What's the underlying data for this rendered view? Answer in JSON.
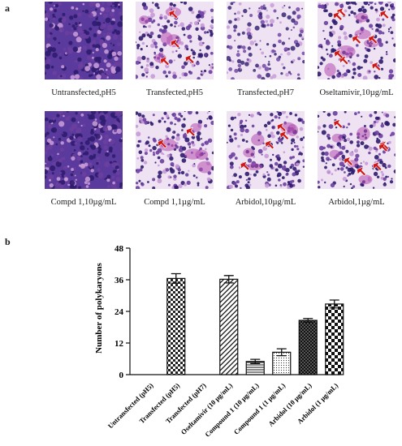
{
  "panel_a": {
    "label": "a",
    "images": [
      {
        "caption": "Untransfected,pH5",
        "style": "dense",
        "arrows": 0
      },
      {
        "caption": "Transfected,pH5",
        "style": "fused",
        "arrows": 4
      },
      {
        "caption": "Transfected,pH7",
        "style": "sparse",
        "arrows": 0
      },
      {
        "caption": "Oseltamivir,10µg/mL",
        "style": "fused",
        "arrows": 8
      },
      {
        "caption": "Compd 1,10µg/mL",
        "style": "dense",
        "arrows": 0
      },
      {
        "caption": "Compd 1,1µg/mL",
        "style": "fused",
        "arrows": 2
      },
      {
        "caption": "Arbidol,10µg/mL",
        "style": "fused",
        "arrows": 4
      },
      {
        "caption": "Arbidol,1µg/mL",
        "style": "fused",
        "arrows": 6
      }
    ]
  },
  "panel_b": {
    "label": "b"
  },
  "colors": {
    "cell_dark": "#2e1c6e",
    "cell_mid": "#6a3fa0",
    "cell_light": "#c69ad6",
    "background_tissue": "#efe2f2",
    "arrow": "#d01818",
    "bar_stroke": "#111111"
  },
  "chart_data": {
    "type": "bar",
    "ylabel": "Number of polykaryons",
    "xlabel": "",
    "ylim": [
      0,
      48
    ],
    "yticks": [
      0,
      12,
      24,
      36,
      48
    ],
    "categories": [
      "Untransfected (pH5)",
      "Transfected (pH5)",
      "Transfected (pH7)",
      "Oseltamivir (10 µg/mL)",
      "Compound 1 (10 µg/mL)",
      "Compound 1 (1 µg/mL)",
      "Arbidol (10 µg/mL)",
      "Arbidol (1 µg/mL)"
    ],
    "values": [
      0,
      36.5,
      0,
      36.2,
      5.0,
      8.5,
      20.6,
      26.8
    ],
    "errors": [
      0,
      1.8,
      0,
      1.4,
      0.8,
      1.3,
      0.7,
      1.5
    ],
    "patterns": [
      "none",
      "checker",
      "none",
      "diagonal",
      "horizontal",
      "dots",
      "dense-checker",
      "large-checker"
    ],
    "grid": false,
    "legend": "none"
  }
}
